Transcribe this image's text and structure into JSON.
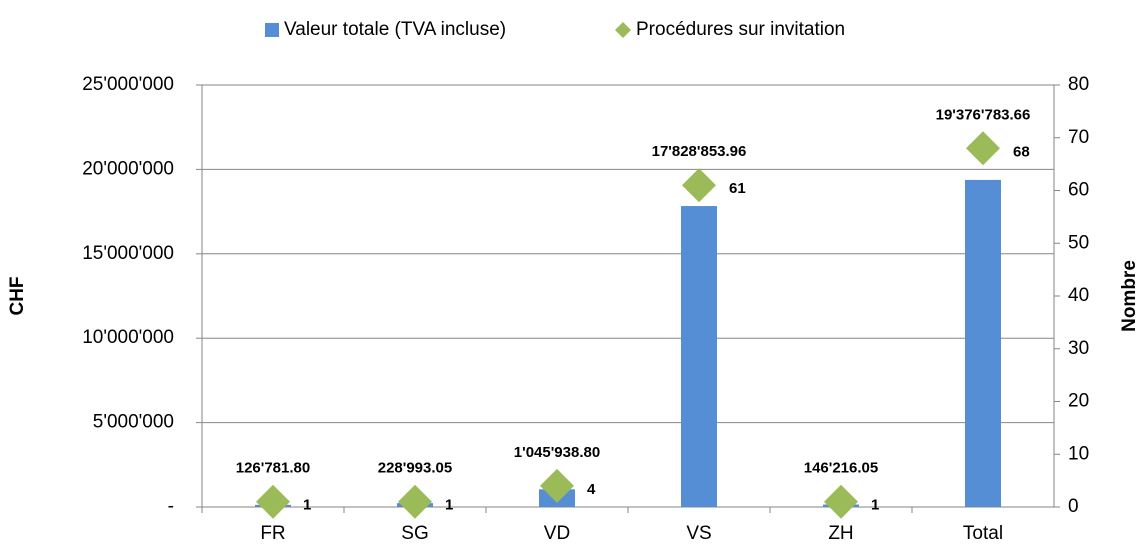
{
  "chart_data": {
    "type": "bar",
    "categories": [
      "FR",
      "SG",
      "VD",
      "VS",
      "ZH",
      "Total"
    ],
    "series": [
      {
        "name": "Valeur totale (TVA incluse)",
        "color": "#558ed5",
        "values": [
          126781.8,
          228993.05,
          1045938.8,
          17828853.96,
          146216.05,
          19376783.66
        ],
        "value_labels": [
          "126'781.80",
          "228'993.05",
          "1'045'938.80",
          "17'828'853.96",
          "146'216.05",
          "19'376'783.66"
        ]
      },
      {
        "name": "Procédures sur invitation",
        "color": "#9bbb59",
        "axis": "y2",
        "type": "scatter",
        "values": [
          1,
          1,
          4,
          61,
          1,
          68
        ]
      }
    ],
    "ylabel": "CHF",
    "y2label": "Nombre",
    "ylim": [
      0,
      25000000
    ],
    "yticks": [
      {
        "value": 0,
        "label": "-"
      },
      {
        "value": 5000000,
        "label": "5'000'000"
      },
      {
        "value": 10000000,
        "label": "10'000'000"
      },
      {
        "value": 15000000,
        "label": "15'000'000"
      },
      {
        "value": 20000000,
        "label": "20'000'000"
      },
      {
        "value": 25000000,
        "label": "25'000'000"
      }
    ],
    "y2lim": [
      0,
      80
    ],
    "y2ticks": [
      0,
      10,
      20,
      30,
      40,
      50,
      60,
      70,
      80
    ],
    "grid": true,
    "legend": "top"
  }
}
